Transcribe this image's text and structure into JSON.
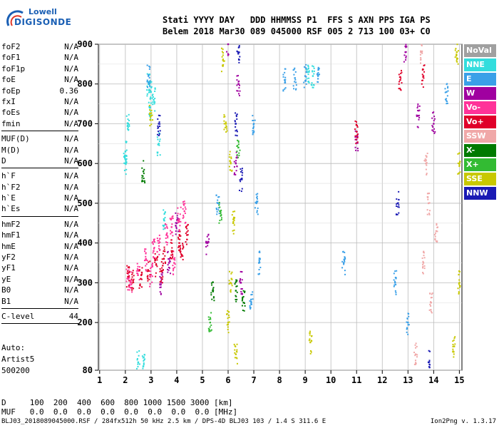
{
  "logo": {
    "line1": "Lowell",
    "line2": "DIGISONDE"
  },
  "header": {
    "line1": "Stati YYYY DAY   DDD HHMMSS P1  FFS S AXN PPS IGA PS",
    "line2": "Belem 2018 Mar30 089 045000 RSF 005 2 713 100 03+ C0"
  },
  "params": [
    {
      "k": "foF2",
      "v": "N/A"
    },
    {
      "k": "foF1",
      "v": "N/A"
    },
    {
      "k": "foF1p",
      "v": "N/A"
    },
    {
      "k": "foE",
      "v": "N/A"
    },
    {
      "k": "foEp",
      "v": "0.36"
    },
    {
      "k": "fxI",
      "v": "N/A"
    },
    {
      "k": "foEs",
      "v": "N/A"
    },
    {
      "k": "fmin",
      "v": "N/A"
    },
    {
      "sep": true
    },
    {
      "k": "MUF(D)",
      "v": "N/A"
    },
    {
      "k": "M(D)",
      "v": "N/A"
    },
    {
      "k": "D",
      "v": "N/A"
    },
    {
      "sep": true
    },
    {
      "k": "h`F",
      "v": "N/A"
    },
    {
      "k": "h`F2",
      "v": "N/A"
    },
    {
      "k": "h`E",
      "v": "N/A"
    },
    {
      "k": "h`Es",
      "v": "N/A"
    },
    {
      "sep": true
    },
    {
      "k": "hmF2",
      "v": "N/A"
    },
    {
      "k": "hmF1",
      "v": "N/A"
    },
    {
      "k": "hmE",
      "v": "N/A"
    },
    {
      "k": "yF2",
      "v": "N/A"
    },
    {
      "k": "yF1",
      "v": "N/A"
    },
    {
      "k": "yE",
      "v": "N/A"
    },
    {
      "k": "B0",
      "v": "N/A"
    },
    {
      "k": "B1",
      "v": "N/A"
    },
    {
      "sep": true
    },
    {
      "k": "C-level",
      "v": "44"
    },
    {
      "sep": true
    }
  ],
  "auto": {
    "l1": "Auto:",
    "l2": "Artist5",
    "l3": "500200"
  },
  "legend": [
    {
      "label": "NoVal",
      "color": "#a0a0a0"
    },
    {
      "label": "NNE",
      "color": "#33dddd"
    },
    {
      "label": "E",
      "color": "#3aa0e8"
    },
    {
      "label": "W",
      "color": "#a000a0"
    },
    {
      "label": "Vo-",
      "color": "#ff3399"
    },
    {
      "label": "Vo+",
      "color": "#e0002a"
    },
    {
      "label": "SSW",
      "color": "#f0a8a8"
    },
    {
      "label": "X-",
      "color": "#007a00"
    },
    {
      "label": "X+",
      "color": "#33bb33"
    },
    {
      "label": "SSE",
      "color": "#c8c800"
    },
    {
      "label": "NNW",
      "color": "#1a1ab4"
    }
  ],
  "dm": {
    "l1": "D     100  200  400  600  800 1000 1500 3000 [km]",
    "l2": "MUF   0.0  0.0  0.0  0.0  0.0  0.0  0.0  0.0 [MHz]"
  },
  "footer": {
    "text": "BLJ03_2018089045000.RSF / 284fx512h 50 kHz 2.5 km / DPS-4D BLJ03 103 / 1.4 S 311.6 E",
    "version": "Ion2Png v. 1.3.17"
  },
  "chart_data": {
    "type": "scatter",
    "title": "",
    "xlabel": "",
    "ylabel": "",
    "xlim": [
      0.95,
      15.1
    ],
    "ylim": [
      80,
      900
    ],
    "xticks": [
      1,
      2,
      3,
      4,
      5,
      6,
      7,
      8,
      9,
      10,
      11,
      12,
      13,
      14,
      15
    ],
    "yticks": [
      80,
      200,
      300,
      400,
      500,
      600,
      700,
      800,
      900
    ],
    "grid": true,
    "legend_position": "right",
    "series": [
      {
        "legend": 1,
        "points": [
          [
            2.0,
            600
          ],
          [
            2.0,
            630
          ],
          [
            2.1,
            700
          ],
          [
            2.9,
            800
          ],
          [
            3.0,
            780
          ],
          [
            3.1,
            760
          ],
          [
            2.95,
            740
          ],
          [
            3.3,
            650
          ],
          [
            2.5,
            100
          ],
          [
            2.7,
            90
          ],
          [
            3.5,
            460
          ],
          [
            9.3,
            820
          ],
          [
            9.1,
            830
          ]
        ]
      },
      {
        "legend": 2,
        "points": [
          [
            2.9,
            820
          ],
          [
            8.2,
            810
          ],
          [
            8.6,
            815
          ],
          [
            9.0,
            820
          ],
          [
            9.5,
            820
          ],
          [
            7.0,
            700
          ],
          [
            7.1,
            500
          ],
          [
            7.2,
            350
          ],
          [
            6.9,
            250
          ],
          [
            5.6,
            500
          ],
          [
            12.5,
            300
          ],
          [
            14.5,
            780
          ],
          [
            13.0,
            200
          ],
          [
            10.5,
            350
          ]
        ]
      },
      {
        "legend": 3,
        "points": [
          [
            3.4,
            300
          ],
          [
            3.7,
            350
          ],
          [
            4.0,
            450
          ],
          [
            5.2,
            400
          ],
          [
            6.3,
            600
          ],
          [
            6.4,
            800
          ],
          [
            6.5,
            300
          ],
          [
            11.0,
            660
          ],
          [
            12.9,
            880
          ],
          [
            14.0,
            700
          ],
          [
            13.4,
            720
          ],
          [
            6.0,
            900
          ]
        ]
      },
      {
        "legend": 4,
        "points": [
          [
            2.1,
            310
          ],
          [
            2.5,
            330
          ],
          [
            2.8,
            360
          ],
          [
            3.1,
            380
          ],
          [
            3.3,
            400
          ],
          [
            3.6,
            420
          ],
          [
            3.8,
            440
          ],
          [
            4.1,
            460
          ],
          [
            4.3,
            480
          ],
          [
            2.2,
            300
          ],
          [
            3.0,
            320
          ],
          [
            3.9,
            350
          ]
        ]
      },
      {
        "legend": 5,
        "points": [
          [
            2.3,
            305
          ],
          [
            2.6,
            310
          ],
          [
            2.9,
            330
          ],
          [
            3.2,
            345
          ],
          [
            3.5,
            360
          ],
          [
            3.8,
            380
          ],
          [
            4.1,
            400
          ],
          [
            4.4,
            420
          ],
          [
            2.1,
            315
          ],
          [
            3.4,
            330
          ],
          [
            4.2,
            370
          ],
          [
            12.7,
            810
          ],
          [
            11.0,
            680
          ],
          [
            13.6,
            820
          ]
        ]
      },
      {
        "legend": 6,
        "points": [
          [
            13.5,
            880
          ],
          [
            13.7,
            600
          ],
          [
            13.8,
            500
          ],
          [
            13.9,
            250
          ],
          [
            13.6,
            350
          ],
          [
            14.1,
            430
          ],
          [
            13.3,
            120
          ]
        ]
      },
      {
        "legend": 7,
        "points": [
          [
            2.7,
            580
          ],
          [
            5.4,
            280
          ],
          [
            6.3,
            280
          ],
          [
            6.6,
            250
          ]
        ]
      },
      {
        "legend": 8,
        "points": [
          [
            5.3,
            200
          ],
          [
            5.7,
            480
          ],
          [
            6.4,
            640
          ]
        ]
      },
      {
        "legend": 9,
        "points": [
          [
            5.8,
            860
          ],
          [
            5.9,
            700
          ],
          [
            6.1,
            600
          ],
          [
            6.2,
            450
          ],
          [
            6.1,
            300
          ],
          [
            6.0,
            200
          ],
          [
            6.3,
            120
          ],
          [
            9.2,
            150
          ],
          [
            14.9,
            880
          ],
          [
            15.0,
            600
          ],
          [
            15.0,
            300
          ],
          [
            14.8,
            140
          ],
          [
            3.0,
            720
          ]
        ]
      },
      {
        "legend": 10,
        "points": [
          [
            6.4,
            880
          ],
          [
            6.3,
            700
          ],
          [
            6.5,
            560
          ],
          [
            12.6,
            500
          ],
          [
            13.8,
            100
          ],
          [
            3.3,
            700
          ]
        ]
      }
    ]
  }
}
